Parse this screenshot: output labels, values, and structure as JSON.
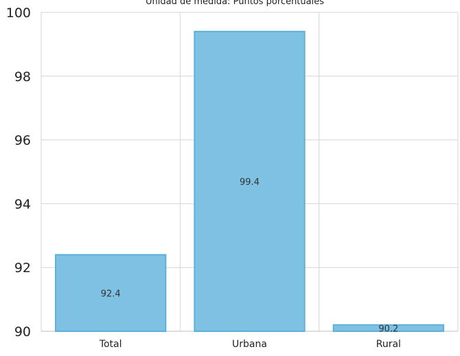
{
  "chart_data": {
    "type": "bar",
    "subtitle": "Unidad de medida: Puntos porcentuales",
    "categories": [
      "Total",
      "Urbana",
      "Rural"
    ],
    "values": [
      92.4,
      99.4,
      90.2
    ],
    "data_labels": [
      "92.4",
      "99.4",
      "90.2"
    ],
    "ylim": [
      90,
      100
    ],
    "yticks": [
      90,
      92,
      94,
      96,
      98,
      100
    ],
    "xlabel": "",
    "ylabel": "",
    "grid": true,
    "bar_color": "#7fc1e3",
    "bar_edge_color": "#5fb0d8"
  }
}
